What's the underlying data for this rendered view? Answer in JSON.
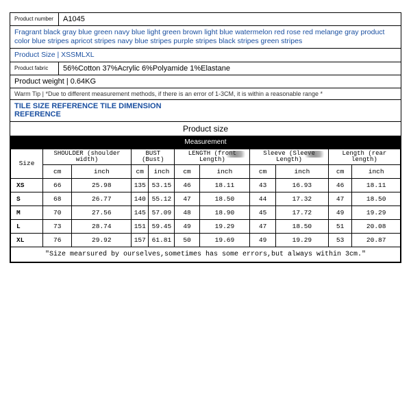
{
  "product": {
    "number_label": "Product number",
    "number_value": "A1045",
    "colors_text": "Fragrant black gray blue green navy blue light green brown light blue watermelon red rose red melange gray product color blue stripes apricot stripes navy blue stripes purple stripes black stripes green stripes",
    "size_line": "Product Size | XSSMLXL",
    "fabric_label": "Product fabric",
    "fabric_value": "56%Cotton 37%Acrylic 6%Polyamide 1%Elastane",
    "weight_line": "Product weight | 0.64KG",
    "warm_tip": "Warm Tip | *Due to different measurement methods, if there is an error of 1-3CM, it is within a reasonable range *",
    "tile_ref": "TILE SIZE REFERENCE TILE DIMENSION REFERENCE",
    "size_caption": "Product size"
  },
  "measurement": {
    "title": "Measurement",
    "size_header": "Size",
    "groups": [
      {
        "label": "SHOULDER (shoulder width)",
        "glitch": false
      },
      {
        "label": "BUST (Bust)",
        "glitch": false
      },
      {
        "label": "LENGTH (front Length)",
        "glitch": true
      },
      {
        "label": "Sleeve (Sleeve Length)",
        "glitch": true
      },
      {
        "label": "Length (rear length)",
        "glitch": false
      }
    ],
    "units": [
      "cm",
      "inch",
      "cm",
      "inch",
      "cm",
      "inch",
      "cm",
      "inch",
      "cm",
      "inch"
    ],
    "rows": [
      {
        "size": "XS",
        "v": [
          "66",
          "25.98",
          "135",
          "53.15",
          "46",
          "18.11",
          "43",
          "16.93",
          "46",
          "18.11"
        ]
      },
      {
        "size": "S",
        "v": [
          "68",
          "26.77",
          "140",
          "55.12",
          "47",
          "18.50",
          "44",
          "17.32",
          "47",
          "18.50"
        ]
      },
      {
        "size": "M",
        "v": [
          "70",
          "27.56",
          "145",
          "57.09",
          "48",
          "18.90",
          "45",
          "17.72",
          "49",
          "19.29"
        ]
      },
      {
        "size": "L",
        "v": [
          "73",
          "28.74",
          "151",
          "59.45",
          "49",
          "19.29",
          "47",
          "18.50",
          "51",
          "20.08"
        ]
      },
      {
        "size": "XL",
        "v": [
          "76",
          "29.92",
          "157",
          "61.81",
          "50",
          "19.69",
          "49",
          "19.29",
          "53",
          "20.87"
        ]
      }
    ],
    "note": "\"Size mearsured by ourselves,sometimes has some errors,but always within 3cm.\""
  },
  "style": {
    "blue": "#1a4fa0",
    "border": "#000000",
    "bg": "#ffffff",
    "meas_header_bg": "#000000",
    "meas_header_fg": "#ffffff",
    "body_font": "Arial",
    "mono_font": "Courier New"
  }
}
